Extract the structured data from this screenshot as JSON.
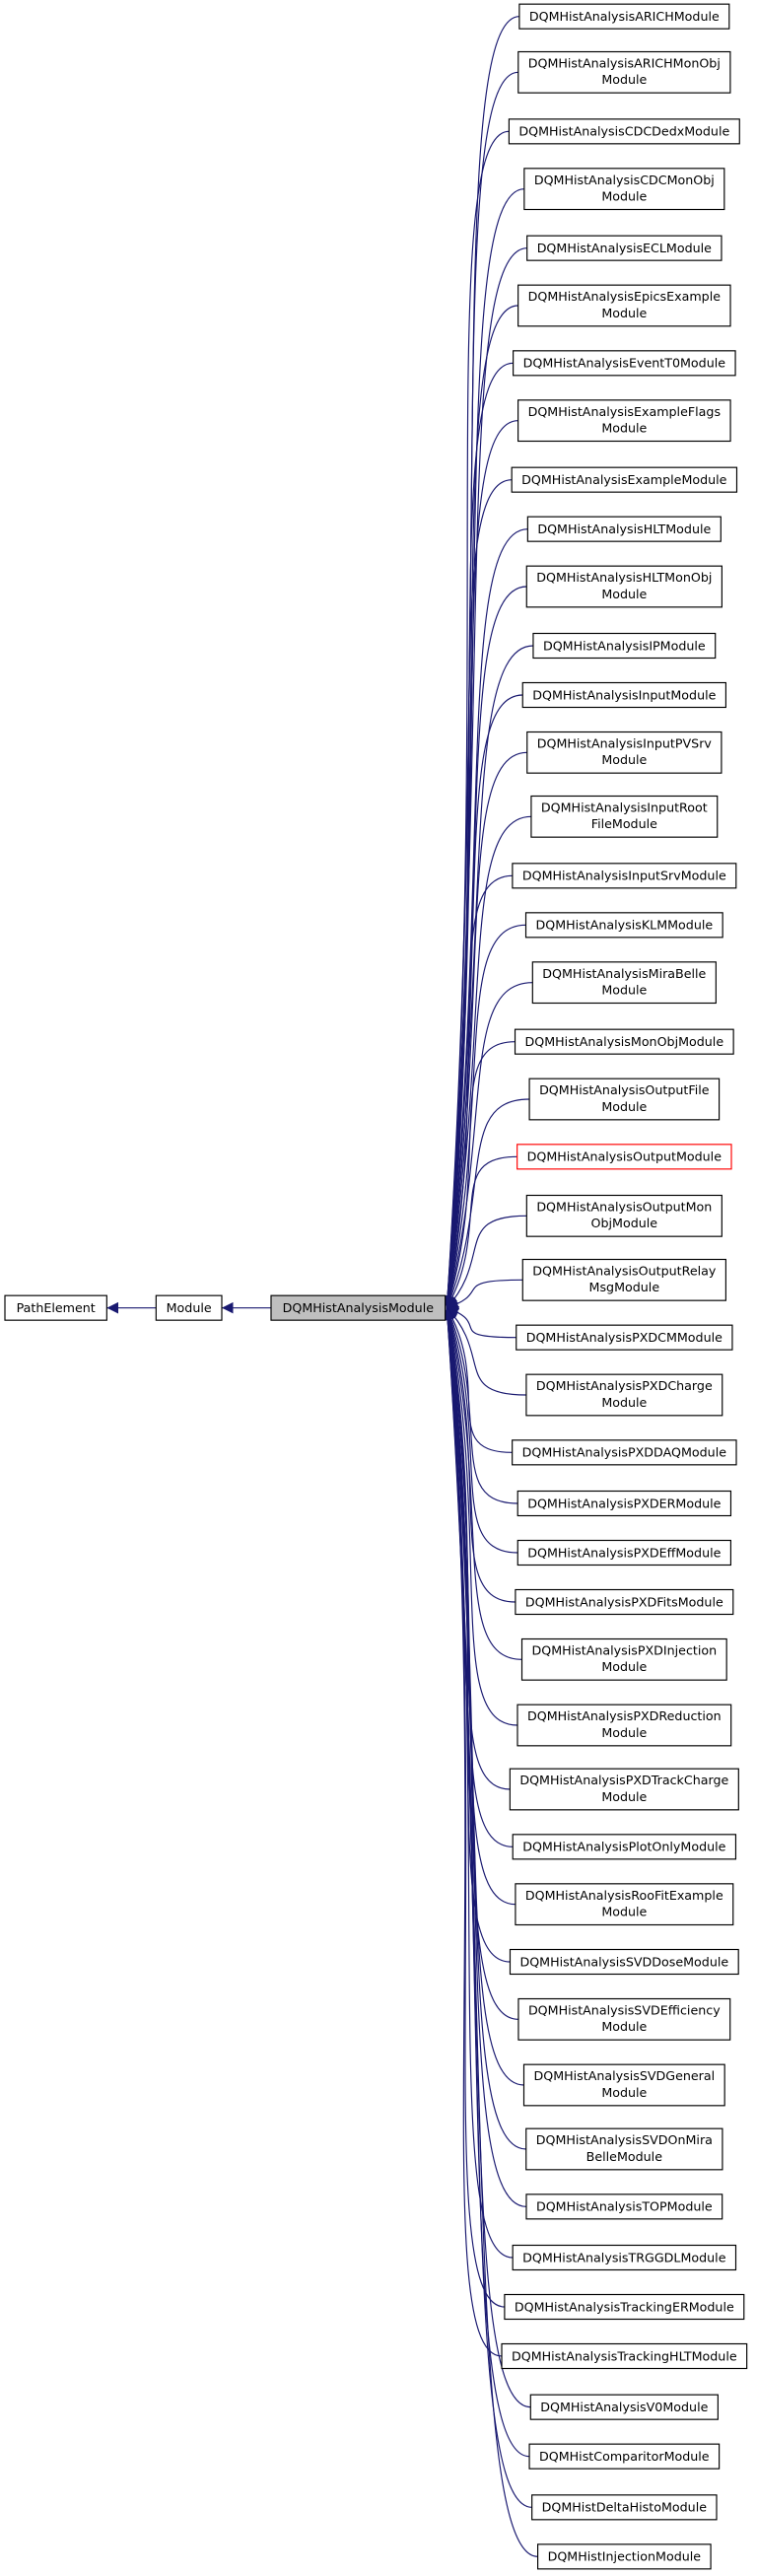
{
  "bases": [
    "PathElement",
    "Module",
    "DQMHistAnalysisModule"
  ],
  "nodes": [
    {
      "lines": [
        "DQMHistAnalysisARICHModule"
      ]
    },
    {
      "lines": [
        "DQMHistAnalysisARICHMonObj",
        "Module"
      ]
    },
    {
      "lines": [
        "DQMHistAnalysisCDCDedxModule"
      ]
    },
    {
      "lines": [
        "DQMHistAnalysisCDCMonObj",
        "Module"
      ]
    },
    {
      "lines": [
        "DQMHistAnalysisECLModule"
      ]
    },
    {
      "lines": [
        "DQMHistAnalysisEpicsExample",
        "Module"
      ]
    },
    {
      "lines": [
        "DQMHistAnalysisEventT0Module"
      ]
    },
    {
      "lines": [
        "DQMHistAnalysisExampleFlags",
        "Module"
      ]
    },
    {
      "lines": [
        "DQMHistAnalysisExampleModule"
      ]
    },
    {
      "lines": [
        "DQMHistAnalysisHLTModule"
      ]
    },
    {
      "lines": [
        "DQMHistAnalysisHLTMonObj",
        "Module"
      ]
    },
    {
      "lines": [
        "DQMHistAnalysisIPModule"
      ]
    },
    {
      "lines": [
        "DQMHistAnalysisInputModule"
      ]
    },
    {
      "lines": [
        "DQMHistAnalysisInputPVSrv",
        "Module"
      ]
    },
    {
      "lines": [
        "DQMHistAnalysisInputRoot",
        "FileModule"
      ]
    },
    {
      "lines": [
        "DQMHistAnalysisInputSrvModule"
      ]
    },
    {
      "lines": [
        "DQMHistAnalysisKLMModule"
      ]
    },
    {
      "lines": [
        "DQMHistAnalysisMiraBelle",
        "Module"
      ]
    },
    {
      "lines": [
        "DQMHistAnalysisMonObjModule"
      ]
    },
    {
      "lines": [
        "DQMHistAnalysisOutputFile",
        "Module"
      ]
    },
    {
      "lines": [
        "DQMHistAnalysisOutputModule"
      ]
    },
    {
      "lines": [
        "DQMHistAnalysisOutputMon",
        "ObjModule"
      ]
    },
    {
      "lines": [
        "DQMHistAnalysisOutputRelay",
        "MsgModule"
      ]
    },
    {
      "lines": [
        "DQMHistAnalysisPXDCMModule"
      ]
    },
    {
      "lines": [
        "DQMHistAnalysisPXDCharge",
        "Module"
      ]
    },
    {
      "lines": [
        "DQMHistAnalysisPXDDAQModule"
      ]
    },
    {
      "lines": [
        "DQMHistAnalysisPXDERModule"
      ]
    },
    {
      "lines": [
        "DQMHistAnalysisPXDEffModule"
      ]
    },
    {
      "lines": [
        "DQMHistAnalysisPXDFitsModule"
      ]
    },
    {
      "lines": [
        "DQMHistAnalysisPXDInjection",
        "Module"
      ]
    },
    {
      "lines": [
        "DQMHistAnalysisPXDReduction",
        "Module"
      ]
    },
    {
      "lines": [
        "DQMHistAnalysisPXDTrackCharge",
        "Module"
      ]
    },
    {
      "lines": [
        "DQMHistAnalysisPlotOnlyModule"
      ]
    },
    {
      "lines": [
        "DQMHistAnalysisRooFitExample",
        "Module"
      ]
    },
    {
      "lines": [
        "DQMHistAnalysisSVDDoseModule"
      ]
    },
    {
      "lines": [
        "DQMHistAnalysisSVDEfficiency",
        "Module"
      ]
    },
    {
      "lines": [
        "DQMHistAnalysisSVDGeneral",
        "Module"
      ]
    },
    {
      "lines": [
        "DQMHistAnalysisSVDOnMira",
        "BelleModule"
      ]
    },
    {
      "lines": [
        "DQMHistAnalysisTOPModule"
      ]
    },
    {
      "lines": [
        "DQMHistAnalysisTRGGDLModule"
      ]
    },
    {
      "lines": [
        "DQMHistAnalysisTrackingERModule"
      ]
    },
    {
      "lines": [
        "DQMHistAnalysisTrackingHLTModule"
      ]
    },
    {
      "lines": [
        "DQMHistAnalysisV0Module"
      ]
    },
    {
      "lines": [
        "DQMHistComparitorModule"
      ]
    },
    {
      "lines": [
        "DQMHistDeltaHistoModule"
      ]
    },
    {
      "lines": [
        "DQMHistInjectionModule"
      ]
    }
  ]
}
